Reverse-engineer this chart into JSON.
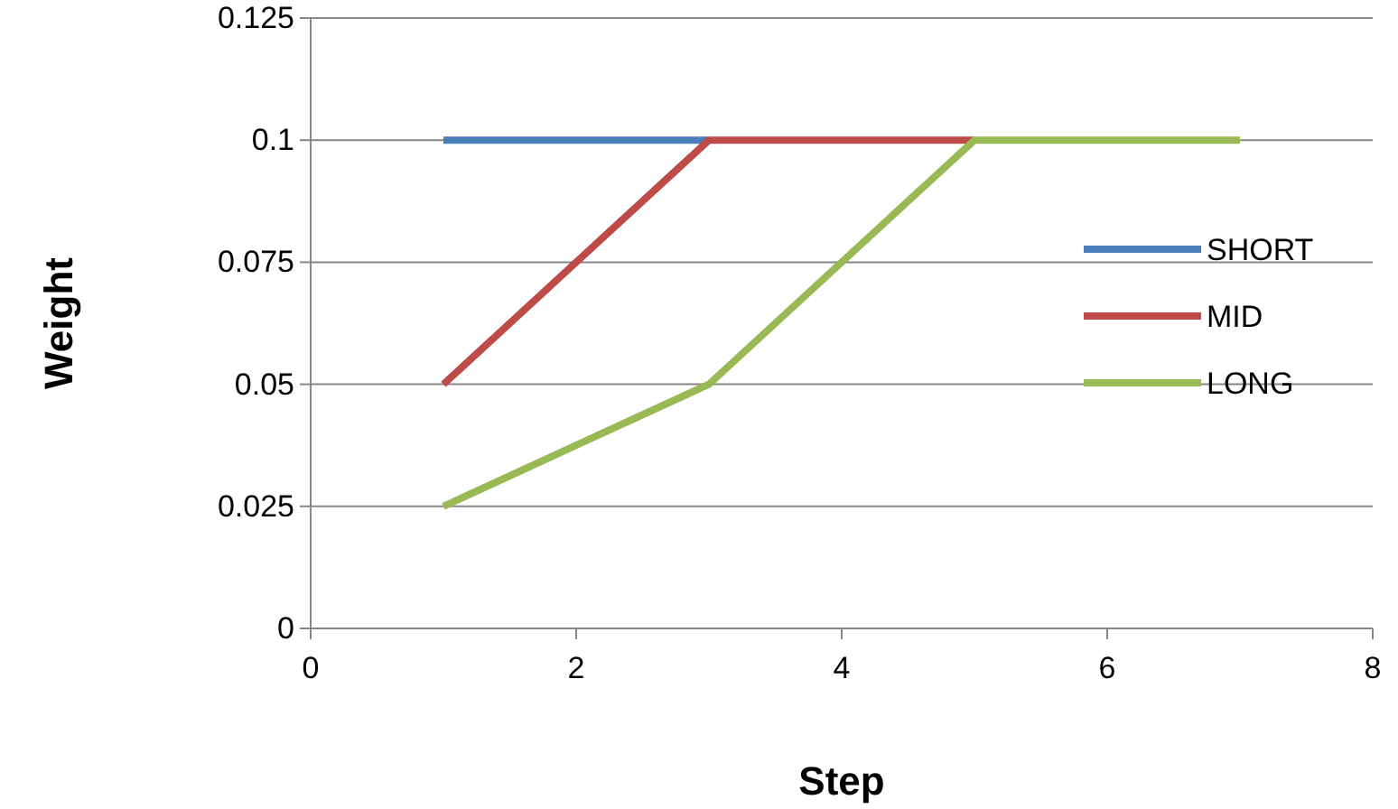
{
  "chart_data": {
    "type": "line",
    "xlabel": "Step",
    "ylabel": "Weight",
    "x": [
      1,
      2,
      3,
      4,
      5,
      6,
      7
    ],
    "series": [
      {
        "name": "SHORT",
        "color": "#4a7ebb",
        "values": [
          0.1,
          0.1,
          0.1,
          null,
          null,
          null,
          null
        ]
      },
      {
        "name": "MID",
        "color": "#be4b48",
        "values": [
          0.05,
          0.075,
          0.1,
          0.1,
          0.1,
          null,
          null
        ]
      },
      {
        "name": "LONG",
        "color": "#98b954",
        "values": [
          0.025,
          0.0375,
          0.05,
          0.075,
          0.1,
          0.1,
          0.1
        ]
      }
    ],
    "xlim": [
      0,
      8
    ],
    "xticks": [
      0,
      2,
      4,
      6,
      8
    ],
    "ylim": [
      0,
      0.125
    ],
    "yticks": [
      0,
      0.025,
      0.05,
      0.075,
      0.1,
      0.125
    ],
    "grid": "y",
    "legend": "right",
    "marker": "none",
    "line_style": "solid"
  }
}
